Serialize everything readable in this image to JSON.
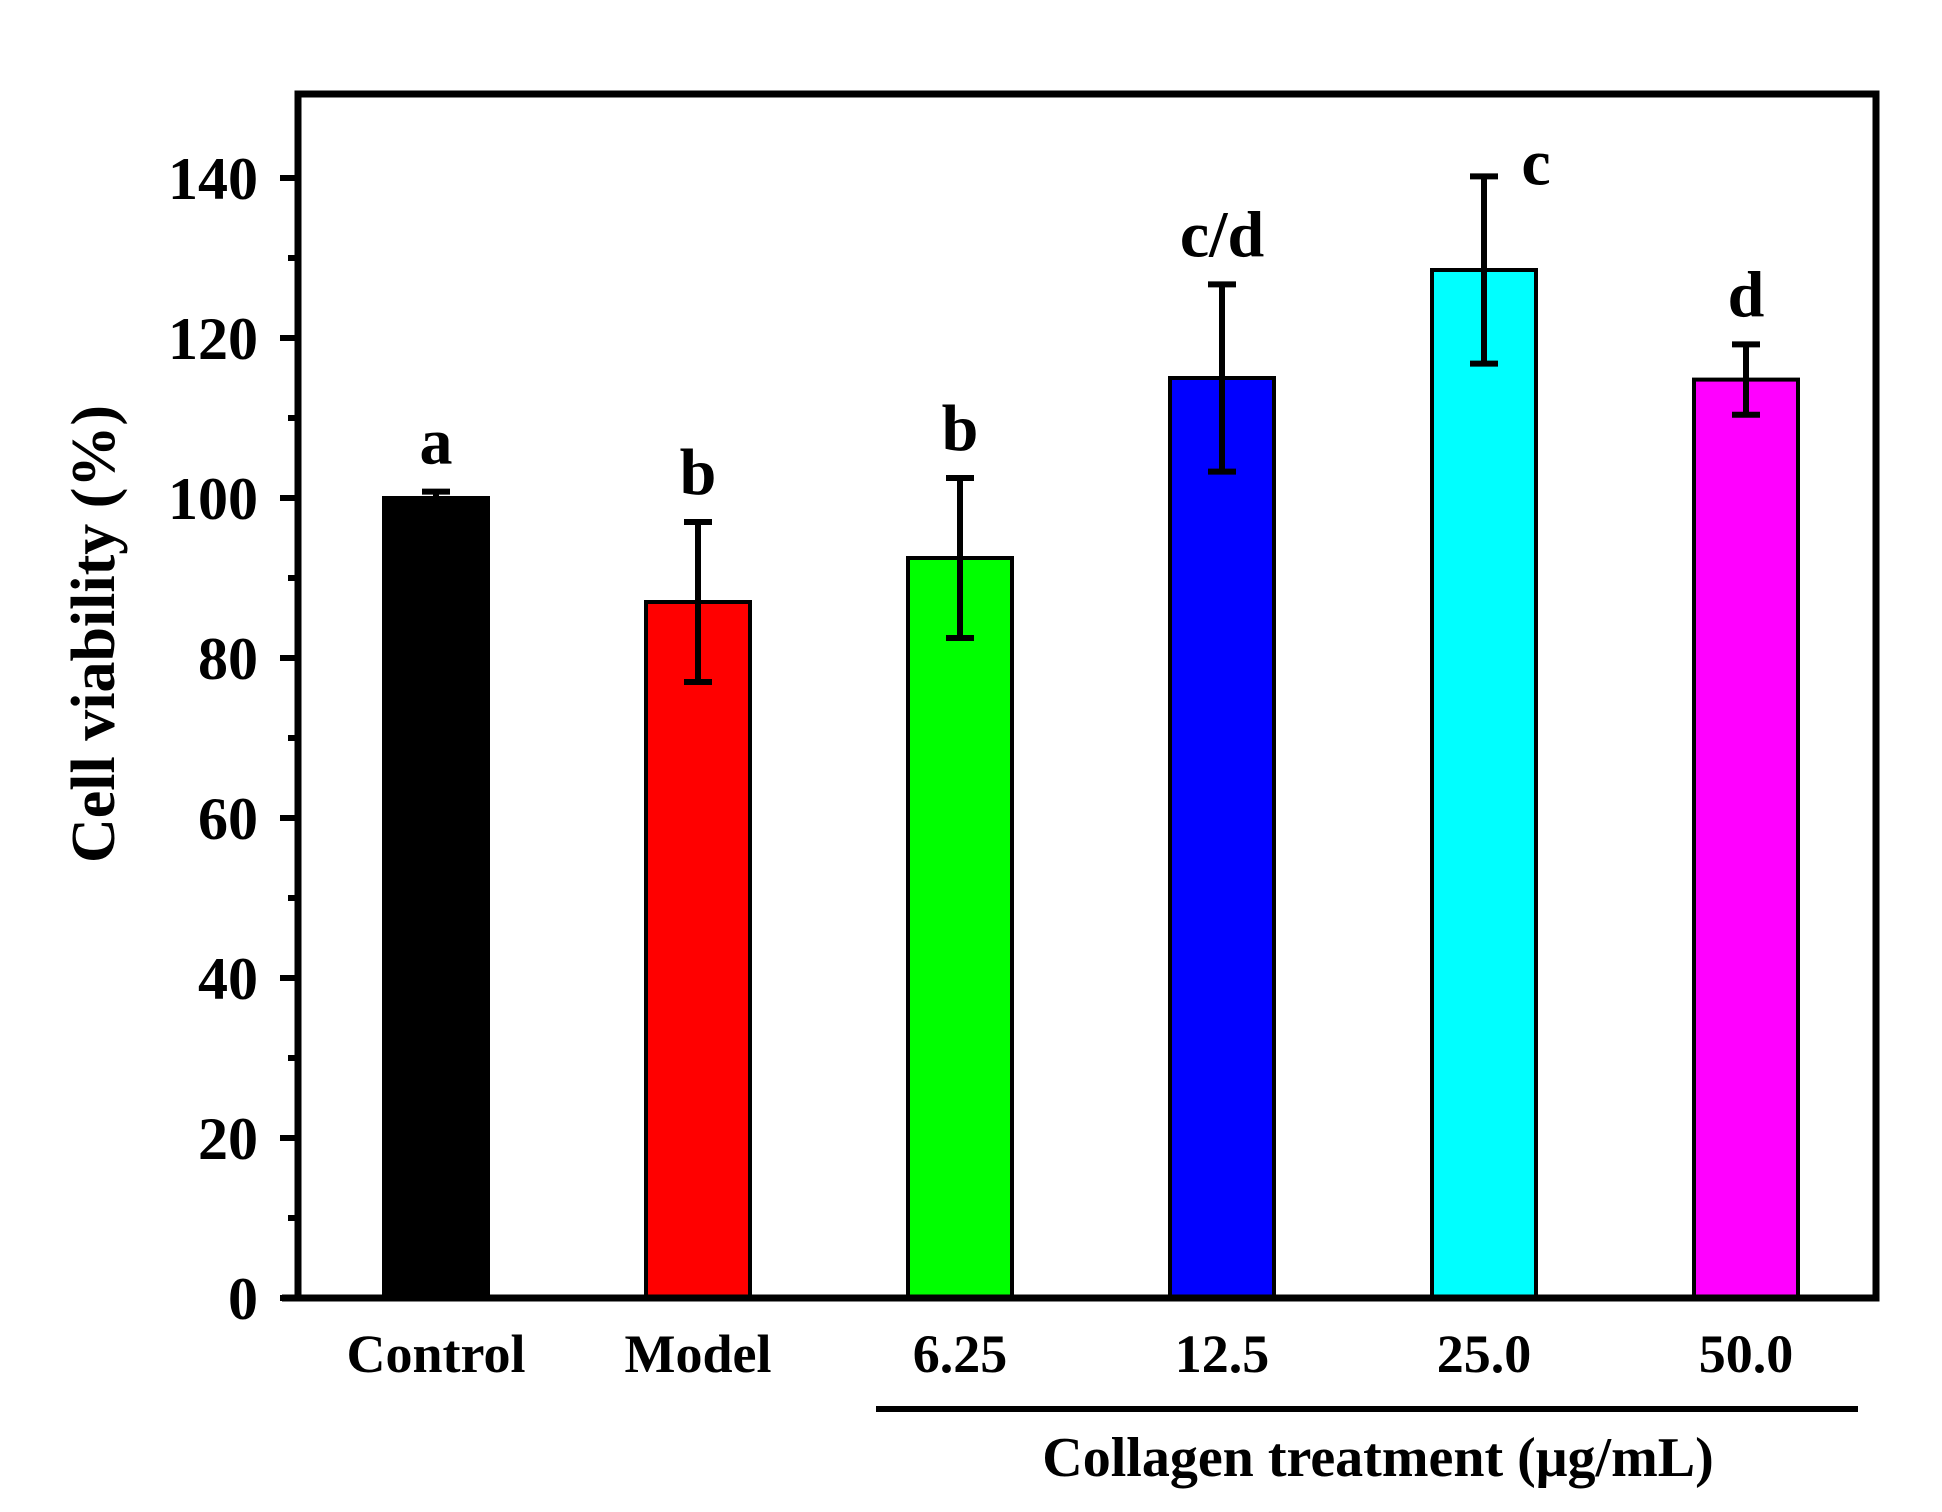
{
  "chart_data": {
    "type": "bar",
    "title": "",
    "xlabel": "",
    "ylabel": "Cell viability (%)",
    "ylim": [
      0,
      150
    ],
    "y_ticks": [
      "0",
      "20",
      "40",
      "60",
      "80",
      "100",
      "120",
      "140"
    ],
    "categories": [
      "Control",
      "Model",
      "6.25",
      "12.5",
      "25.0",
      "50.0"
    ],
    "values": [
      100,
      87,
      92.5,
      115,
      128.5,
      114.8
    ],
    "errors": [
      0.8,
      10,
      10,
      11.7,
      11.7,
      4.4
    ],
    "significance": [
      "a",
      "b",
      "b",
      "c/d",
      "c",
      "d"
    ],
    "colors": [
      "#000000",
      "#ff0000",
      "#00ff00",
      "#0000ff",
      "#00ffff",
      "#ff00ff"
    ],
    "group_label": "Collagen treatment (μg/mL)",
    "grid": false,
    "legend": "none"
  }
}
